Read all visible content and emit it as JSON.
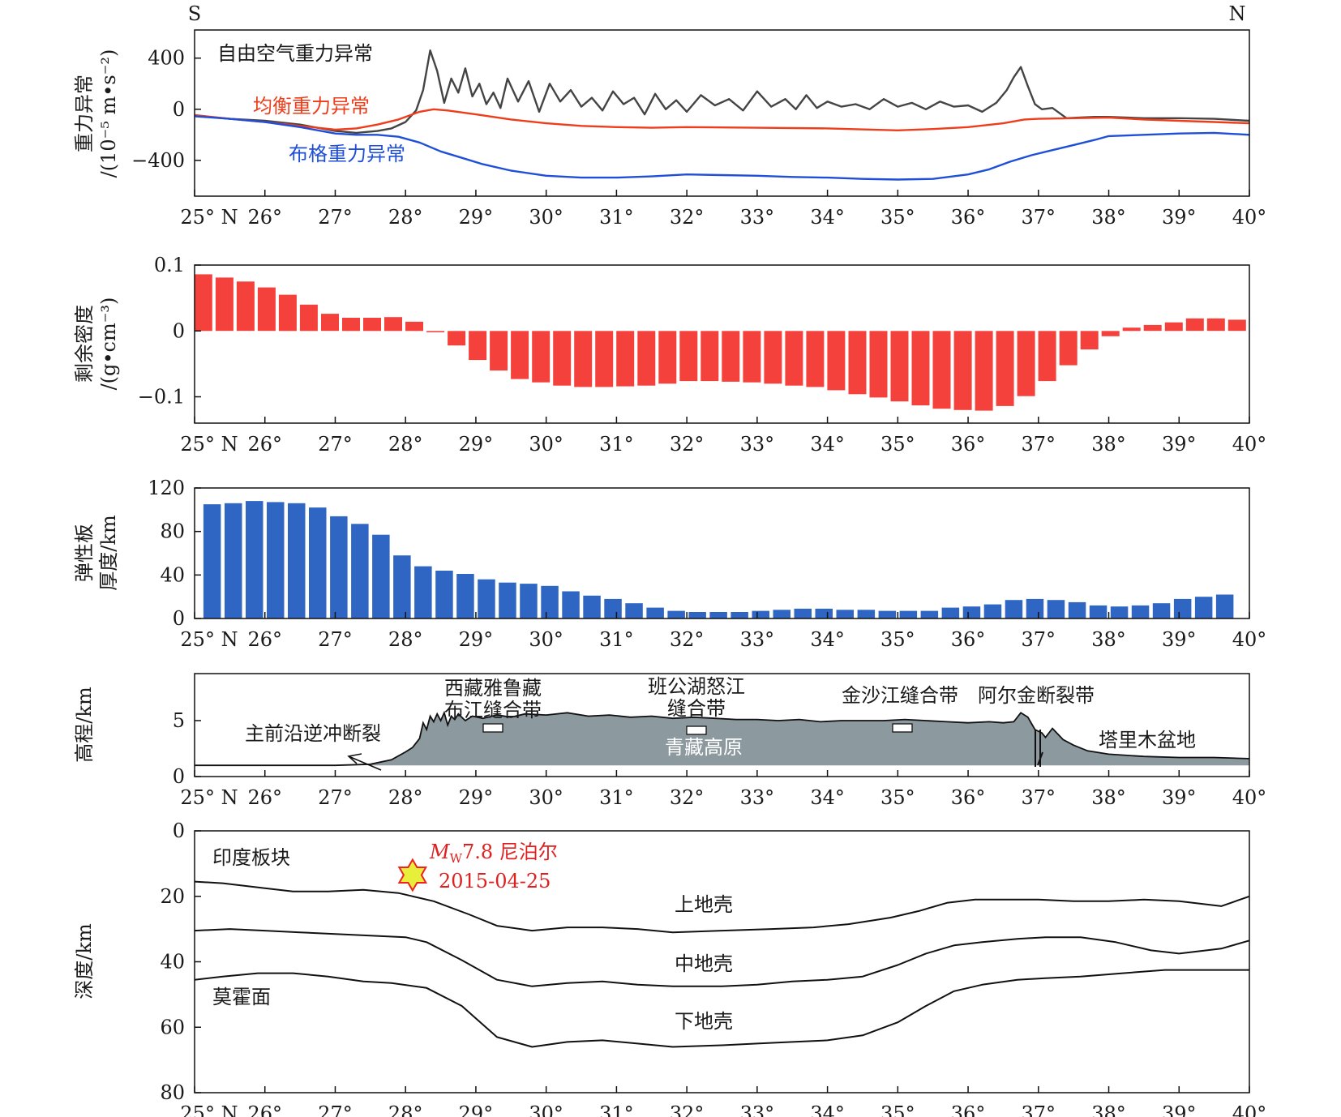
{
  "colors": {
    "free_air": "#444444",
    "isostatic": "#ee3d1b",
    "bouguer": "#1f4fd8",
    "density": "#f5413b",
    "elastic": "#2f66c4",
    "terrain": "#8c999f",
    "star_fill": "#e8ef3a",
    "star_stroke": "#ee2222",
    "quake_text": "#e02020"
  },
  "x_ticks": [
    "25° N",
    "26°",
    "27°",
    "28°",
    "29°",
    "30°",
    "31°",
    "32°",
    "33°",
    "34°",
    "35°",
    "36°",
    "37°",
    "38°",
    "39°",
    "40°"
  ],
  "direction": {
    "south": "S",
    "north": "N"
  },
  "chart_data": [
    {
      "type": "line",
      "ylabel_line1": "重力异常",
      "ylabel_line2": "/(10⁻⁵ m•s⁻²)",
      "xlim": [
        25,
        40
      ],
      "ylim": [
        -680,
        620
      ],
      "yticks": [
        400,
        0,
        -400
      ],
      "ytick_labels": [
        "400",
        "0",
        "−400"
      ],
      "series": [
        {
          "name": "自由空气重力异常",
          "color_key": "free_air",
          "x": [
            25.0,
            25.5,
            26.0,
            26.5,
            27.0,
            27.3,
            27.6,
            27.8,
            28.0,
            28.15,
            28.25,
            28.35,
            28.45,
            28.55,
            28.65,
            28.75,
            28.85,
            28.95,
            29.05,
            29.15,
            29.25,
            29.35,
            29.45,
            29.6,
            29.75,
            29.9,
            30.05,
            30.2,
            30.35,
            30.5,
            30.65,
            30.8,
            30.95,
            31.1,
            31.25,
            31.4,
            31.55,
            31.7,
            31.85,
            32.0,
            32.2,
            32.4,
            32.6,
            32.8,
            33.0,
            33.2,
            33.4,
            33.55,
            33.7,
            33.85,
            34.0,
            34.2,
            34.4,
            34.6,
            34.8,
            35.0,
            35.2,
            35.4,
            35.6,
            35.8,
            36.0,
            36.2,
            36.4,
            36.55,
            36.65,
            36.75,
            36.85,
            36.95,
            37.05,
            37.2,
            37.4,
            37.6,
            37.8,
            38.0,
            38.5,
            39.0,
            39.5,
            40.0
          ],
          "y": [
            -50,
            -75,
            -90,
            -120,
            -170,
            -185,
            -170,
            -150,
            -100,
            -10,
            150,
            460,
            300,
            50,
            240,
            130,
            320,
            100,
            200,
            40,
            130,
            10,
            240,
            60,
            220,
            -20,
            200,
            60,
            150,
            20,
            90,
            -10,
            140,
            40,
            90,
            -40,
            120,
            0,
            70,
            -20,
            110,
            30,
            80,
            -10,
            140,
            20,
            80,
            0,
            110,
            10,
            60,
            20,
            40,
            0,
            80,
            20,
            50,
            0,
            60,
            20,
            30,
            -20,
            50,
            150,
            250,
            330,
            180,
            40,
            0,
            10,
            -70,
            -65,
            -60,
            -60,
            -70,
            -70,
            -75,
            -90
          ]
        },
        {
          "name": "均衡重力异常",
          "color_key": "isostatic",
          "x": [
            25.0,
            25.5,
            26.0,
            26.5,
            27.0,
            27.3,
            27.6,
            27.9,
            28.2,
            28.4,
            28.6,
            29.0,
            29.5,
            30.0,
            30.5,
            31.0,
            31.5,
            32.0,
            33.0,
            34.0,
            35.0,
            35.5,
            36.0,
            36.5,
            36.8,
            37.0,
            37.5,
            38.0,
            38.5,
            39.0,
            39.5,
            40.0
          ],
          "y": [
            -45,
            -75,
            -100,
            -130,
            -160,
            -150,
            -120,
            -80,
            -20,
            0,
            -10,
            -40,
            -80,
            -110,
            -130,
            -140,
            -145,
            -140,
            -145,
            -150,
            -165,
            -155,
            -140,
            -110,
            -80,
            -75,
            -70,
            -65,
            -80,
            -90,
            -100,
            -110
          ]
        },
        {
          "name": "布格重力异常",
          "color_key": "bouguer",
          "x": [
            25.0,
            25.5,
            26.0,
            26.5,
            27.0,
            27.3,
            27.6,
            27.9,
            28.2,
            28.5,
            28.8,
            29.1,
            29.5,
            30.0,
            30.5,
            31.0,
            31.5,
            32.0,
            32.5,
            33.0,
            33.5,
            34.0,
            34.5,
            35.0,
            35.5,
            36.0,
            36.3,
            36.6,
            36.9,
            37.2,
            37.5,
            37.8,
            38.0,
            38.5,
            39.0,
            39.5,
            40.0
          ],
          "y": [
            -55,
            -75,
            -100,
            -140,
            -190,
            -200,
            -200,
            -215,
            -260,
            -330,
            -380,
            -430,
            -480,
            -520,
            -535,
            -535,
            -525,
            -510,
            -515,
            -520,
            -530,
            -535,
            -545,
            -550,
            -545,
            -510,
            -470,
            -410,
            -360,
            -320,
            -280,
            -240,
            -210,
            -200,
            -190,
            -185,
            -200
          ]
        }
      ]
    },
    {
      "type": "bar",
      "ylabel_line1": "剩余密度",
      "ylabel_line2": "/(g•cm⁻³)",
      "xlim": [
        25,
        40
      ],
      "ylim": [
        -0.14,
        0.1
      ],
      "yticks": [
        0.1,
        0,
        -0.1
      ],
      "ytick_labels": [
        "0.1",
        "0",
        "−0.1"
      ],
      "x": [
        25.125,
        25.425,
        25.725,
        26.025,
        26.325,
        26.625,
        26.925,
        27.225,
        27.525,
        27.825,
        28.125,
        28.425,
        28.725,
        29.025,
        29.325,
        29.625,
        29.925,
        30.225,
        30.525,
        30.825,
        31.125,
        31.425,
        31.725,
        32.025,
        32.325,
        32.625,
        32.925,
        33.225,
        33.525,
        33.825,
        34.125,
        34.425,
        34.725,
        35.025,
        35.325,
        35.625,
        35.925,
        36.225,
        36.525,
        36.825,
        37.125,
        37.425,
        37.725,
        38.025,
        38.325,
        38.625,
        38.925,
        39.225,
        39.525,
        39.825
      ],
      "values": [
        0.086,
        0.081,
        0.075,
        0.066,
        0.055,
        0.04,
        0.026,
        0.02,
        0.02,
        0.021,
        0.014,
        -0.002,
        -0.022,
        -0.044,
        -0.06,
        -0.073,
        -0.078,
        -0.083,
        -0.085,
        -0.085,
        -0.084,
        -0.083,
        -0.08,
        -0.076,
        -0.076,
        -0.077,
        -0.078,
        -0.08,
        -0.083,
        -0.085,
        -0.09,
        -0.096,
        -0.101,
        -0.107,
        -0.113,
        -0.118,
        -0.12,
        -0.121,
        -0.114,
        -0.099,
        -0.076,
        -0.052,
        -0.028,
        -0.008,
        0.005,
        0.009,
        0.013,
        0.019,
        0.019,
        0.017
      ]
    },
    {
      "type": "bar",
      "ylabel_line1": "弹性板",
      "ylabel_line2": "厚度/km",
      "xlim": [
        25,
        40
      ],
      "ylim": [
        0,
        120
      ],
      "yticks": [
        120,
        80,
        40,
        0
      ],
      "ytick_labels": [
        "120",
        "80",
        "40",
        "0"
      ],
      "x": [
        25.25,
        25.55,
        25.85,
        26.15,
        26.45,
        26.75,
        27.05,
        27.35,
        27.65,
        27.95,
        28.25,
        28.55,
        28.85,
        29.15,
        29.45,
        29.75,
        30.05,
        30.35,
        30.65,
        30.95,
        31.25,
        31.55,
        31.85,
        32.15,
        32.45,
        32.75,
        33.05,
        33.35,
        33.65,
        33.95,
        34.25,
        34.55,
        34.85,
        35.15,
        35.45,
        35.75,
        36.05,
        36.35,
        36.65,
        36.95,
        37.25,
        37.55,
        37.85,
        38.15,
        38.45,
        38.75,
        39.05,
        39.35,
        39.65
      ],
      "values": [
        105,
        106,
        108,
        107,
        106,
        102,
        94,
        87,
        77,
        58,
        48,
        44,
        41,
        36,
        33,
        32,
        30,
        25,
        21,
        18,
        14,
        10,
        7,
        6,
        6,
        6,
        7,
        8,
        9,
        9,
        8,
        8,
        7,
        7,
        7,
        10,
        11,
        13,
        17,
        18,
        17,
        15,
        12,
        11,
        12,
        14,
        18,
        20,
        22
      ]
    },
    {
      "type": "area",
      "ylabel": "高程/km",
      "xlim": [
        25,
        40
      ],
      "ylim": [
        0,
        9.2
      ],
      "yticks": [
        5,
        0
      ],
      "ytick_labels": [
        "5",
        "0"
      ],
      "x": [
        25.0,
        26.0,
        27.0,
        27.5,
        27.8,
        28.0,
        28.1,
        28.2,
        28.25,
        28.3,
        28.35,
        28.4,
        28.45,
        28.5,
        28.55,
        28.6,
        28.65,
        28.7,
        28.75,
        28.85,
        28.95,
        29.1,
        29.3,
        29.5,
        29.7,
        30.0,
        30.3,
        30.6,
        30.9,
        31.2,
        31.5,
        31.8,
        32.1,
        32.4,
        32.7,
        33.0,
        33.3,
        33.6,
        33.9,
        34.2,
        34.5,
        34.8,
        35.1,
        35.4,
        35.7,
        36.0,
        36.3,
        36.5,
        36.65,
        36.75,
        36.85,
        36.95,
        37.05,
        37.1,
        37.2,
        37.35,
        37.5,
        37.7,
        38.0,
        38.5,
        39.0,
        39.5,
        40.0
      ],
      "y": [
        1.0,
        1.0,
        1.0,
        1.1,
        1.5,
        2.2,
        2.6,
        3.4,
        4.8,
        4.2,
        5.4,
        4.9,
        5.6,
        5.0,
        5.7,
        4.6,
        5.4,
        5.1,
        5.6,
        5.0,
        5.4,
        5.2,
        5.5,
        5.3,
        5.6,
        5.5,
        5.7,
        5.4,
        5.5,
        5.3,
        5.4,
        5.2,
        5.3,
        5.2,
        5.1,
        5.1,
        5.0,
        5.1,
        4.9,
        5.0,
        5.0,
        5.0,
        5.1,
        5.0,
        4.9,
        4.8,
        4.9,
        4.8,
        4.9,
        5.7,
        5.3,
        4.2,
        3.9,
        3.5,
        4.3,
        3.3,
        2.8,
        2.3,
        2.0,
        1.8,
        1.7,
        1.7,
        1.6
      ],
      "annotations": [
        "主前沿逆冲断裂",
        "西藏雅鲁藏",
        "布江缝合带",
        "班公湖怒江",
        "缝合带",
        "金沙江缝合带",
        "阿尔金断裂带",
        "青藏高原",
        "塔里木盆地"
      ]
    },
    {
      "type": "line",
      "ylabel": "深度/km",
      "xlim": [
        25,
        40
      ],
      "ylim": [
        0,
        80
      ],
      "y_inverted": true,
      "yticks": [
        0,
        20,
        40,
        60,
        80
      ],
      "ytick_labels": [
        "0",
        "20",
        "40",
        "60",
        "80"
      ],
      "series": [
        {
          "x": [
            25.0,
            25.4,
            26.0,
            26.4,
            26.9,
            27.4,
            27.9,
            28.4,
            28.9,
            29.3,
            29.8,
            30.3,
            30.8,
            31.3,
            31.8,
            32.5,
            33.2,
            33.8,
            34.3,
            34.9,
            35.3,
            35.7,
            36.1,
            36.5,
            37.0,
            37.5,
            38.0,
            38.5,
            39.0,
            39.6,
            40.0
          ],
          "y": [
            15.5,
            16,
            17.5,
            18.5,
            18.5,
            18,
            19,
            21.5,
            25.5,
            29,
            30.5,
            29.5,
            29.5,
            30,
            31,
            30.5,
            30,
            29.5,
            28.5,
            26.5,
            24.5,
            22,
            21,
            21,
            21,
            21.5,
            21.5,
            21,
            21.5,
            23,
            20
          ]
        },
        {
          "x": [
            25.0,
            25.5,
            26.0,
            26.5,
            27.0,
            27.5,
            28.0,
            28.3,
            28.8,
            29.3,
            29.8,
            30.3,
            30.8,
            31.3,
            31.8,
            32.5,
            33.0,
            33.5,
            34.0,
            34.5,
            35.0,
            35.4,
            35.8,
            36.2,
            36.7,
            37.1,
            37.6,
            38.1,
            38.6,
            39.0,
            39.6,
            40.0
          ],
          "y": [
            30.5,
            30,
            30.5,
            31,
            31.5,
            32,
            32.5,
            34,
            39.5,
            45.5,
            47.5,
            46.5,
            46,
            47,
            47.5,
            47.5,
            47,
            46,
            45.5,
            44.5,
            41,
            37.5,
            35,
            34,
            33,
            32.5,
            32.5,
            34,
            36.5,
            37.5,
            36,
            33.5
          ]
        },
        {
          "x": [
            25.0,
            25.4,
            25.9,
            26.4,
            26.9,
            27.4,
            27.8,
            28.3,
            28.8,
            29.3,
            29.8,
            30.3,
            30.8,
            31.3,
            31.8,
            32.5,
            33.0,
            33.5,
            34.0,
            34.5,
            35.0,
            35.4,
            35.8,
            36.2,
            36.7,
            37.1,
            37.6,
            38.2,
            38.8,
            39.4,
            40.0
          ],
          "y": [
            45.5,
            44.5,
            43.5,
            43.5,
            44.5,
            46,
            46.5,
            48,
            53.5,
            63,
            66,
            64.5,
            64,
            65,
            66,
            65.5,
            65,
            64.5,
            64,
            62.5,
            58.5,
            53.5,
            49,
            47,
            45.5,
            45,
            44.5,
            43.5,
            42.5,
            42.5,
            42.5
          ]
        }
      ],
      "labels": [
        "印度板块",
        "上地壳",
        "中地壳",
        "下地壳",
        "莫霍面"
      ],
      "event": {
        "magnitude_prefix": "M",
        "magnitude_sub": "W",
        "magnitude_rest": "7.8 尼泊尔",
        "date": "2015-04-25",
        "x": 28.1,
        "depth": 13.5
      }
    }
  ]
}
